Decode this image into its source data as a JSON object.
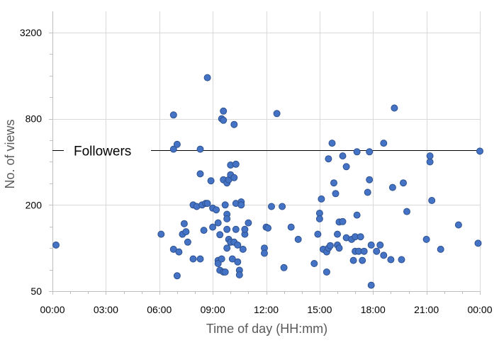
{
  "chart_data": {
    "type": "scatter",
    "xlabel": "Time of day (HH:mm)",
    "ylabel": "No. of views",
    "x_unit": "hours",
    "xlim": [
      0,
      24
    ],
    "ylim": [
      50,
      4500
    ],
    "y_scale": "log2",
    "x_ticks": [
      {
        "value": 0,
        "label": "00:00"
      },
      {
        "value": 3,
        "label": "03:00"
      },
      {
        "value": 6,
        "label": "06:00"
      },
      {
        "value": 9,
        "label": "09:00"
      },
      {
        "value": 12,
        "label": "12:00"
      },
      {
        "value": 15,
        "label": "15:00"
      },
      {
        "value": 18,
        "label": "18:00"
      },
      {
        "value": 21,
        "label": "21:00"
      },
      {
        "value": 24,
        "label": "00:00"
      }
    ],
    "y_ticks": [
      {
        "value": 50,
        "label": "50"
      },
      {
        "value": 200,
        "label": "200"
      },
      {
        "value": 800,
        "label": "800"
      },
      {
        "value": 3200,
        "label": "3200"
      }
    ],
    "grid": true,
    "annotation": {
      "label": "Followers",
      "y": 480
    },
    "points": [
      [
        0.2,
        105
      ],
      [
        6.1,
        125
      ],
      [
        6.8,
        490
      ],
      [
        6.8,
        850
      ],
      [
        6.8,
        98
      ],
      [
        7.0,
        530
      ],
      [
        7.1,
        94
      ],
      [
        7.0,
        64
      ],
      [
        7.3,
        125
      ],
      [
        7.4,
        148
      ],
      [
        7.5,
        130
      ],
      [
        7.6,
        110
      ],
      [
        7.9,
        200
      ],
      [
        7.9,
        84
      ],
      [
        8.1,
        195
      ],
      [
        8.3,
        84
      ],
      [
        8.3,
        490
      ],
      [
        8.3,
        330
      ],
      [
        8.4,
        200
      ],
      [
        8.5,
        133
      ],
      [
        8.6,
        205
      ],
      [
        8.7,
        1550
      ],
      [
        8.7,
        205
      ],
      [
        8.9,
        295
      ],
      [
        9.0,
        140
      ],
      [
        9.0,
        190
      ],
      [
        9.2,
        185
      ],
      [
        9.3,
        82
      ],
      [
        9.3,
        150
      ],
      [
        9.3,
        78
      ],
      [
        9.4,
        124
      ],
      [
        9.4,
        70
      ],
      [
        9.5,
        800
      ],
      [
        9.5,
        84
      ],
      [
        9.6,
        905
      ],
      [
        9.6,
        780
      ],
      [
        9.6,
        68
      ],
      [
        9.6,
        300
      ],
      [
        9.7,
        68
      ],
      [
        9.8,
        100
      ],
      [
        9.8,
        135
      ],
      [
        9.8,
        172
      ],
      [
        9.7,
        200
      ],
      [
        9.8,
        160
      ],
      [
        9.8,
        285
      ],
      [
        9.9,
        300
      ],
      [
        9.9,
        115
      ],
      [
        10.0,
        110
      ],
      [
        10.0,
        325
      ],
      [
        10.0,
        380
      ],
      [
        10.0,
        110
      ],
      [
        10.1,
        84
      ],
      [
        10.2,
        310
      ],
      [
        10.2,
        110
      ],
      [
        10.2,
        730
      ],
      [
        10.3,
        135
      ],
      [
        10.3,
        205
      ],
      [
        10.3,
        385
      ],
      [
        10.4,
        105
      ],
      [
        10.4,
        80
      ],
      [
        10.5,
        70
      ],
      [
        10.5,
        65
      ],
      [
        10.6,
        210
      ],
      [
        10.6,
        200
      ],
      [
        10.7,
        98
      ],
      [
        10.8,
        125
      ],
      [
        10.8,
        135
      ],
      [
        11.0,
        150
      ],
      [
        11.9,
        100
      ],
      [
        11.9,
        92
      ],
      [
        12.0,
        140
      ],
      [
        12.1,
        138
      ],
      [
        12.3,
        195
      ],
      [
        12.6,
        870
      ],
      [
        12.9,
        195
      ],
      [
        13.0,
        73
      ],
      [
        13.4,
        140
      ],
      [
        13.8,
        115
      ],
      [
        14.7,
        78
      ],
      [
        14.9,
        125
      ],
      [
        15.0,
        175
      ],
      [
        15.0,
        160
      ],
      [
        15.1,
        220
      ],
      [
        15.2,
        98
      ],
      [
        15.4,
        94
      ],
      [
        15.4,
        68
      ],
      [
        15.5,
        100
      ],
      [
        15.5,
        420
      ],
      [
        15.6,
        104
      ],
      [
        15.7,
        540
      ],
      [
        15.8,
        285
      ],
      [
        15.9,
        240
      ],
      [
        16.0,
        125
      ],
      [
        16.0,
        105
      ],
      [
        16.1,
        100
      ],
      [
        16.1,
        152
      ],
      [
        16.3,
        153
      ],
      [
        16.3,
        440
      ],
      [
        16.5,
        370
      ],
      [
        16.5,
        118
      ],
      [
        16.8,
        115
      ],
      [
        16.9,
        82
      ],
      [
        17.0,
        120
      ],
      [
        17.0,
        95
      ],
      [
        17.1,
        170
      ],
      [
        17.2,
        95
      ],
      [
        17.1,
        470
      ],
      [
        17.3,
        120
      ],
      [
        17.4,
        82
      ],
      [
        17.5,
        95
      ],
      [
        17.7,
        245
      ],
      [
        17.8,
        300
      ],
      [
        17.8,
        470
      ],
      [
        17.9,
        105
      ],
      [
        17.9,
        55
      ],
      [
        18.2,
        95
      ],
      [
        18.4,
        105
      ],
      [
        18.6,
        540
      ],
      [
        18.6,
        89
      ],
      [
        19.0,
        83
      ],
      [
        19.1,
        265
      ],
      [
        19.2,
        950
      ],
      [
        19.6,
        83
      ],
      [
        19.7,
        285
      ],
      [
        19.9,
        180
      ],
      [
        21.0,
        115
      ],
      [
        21.2,
        400
      ],
      [
        21.2,
        440
      ],
      [
        21.3,
        215
      ],
      [
        21.8,
        98
      ],
      [
        22.8,
        145
      ],
      [
        23.9,
        108
      ],
      [
        24.0,
        475
      ]
    ]
  }
}
